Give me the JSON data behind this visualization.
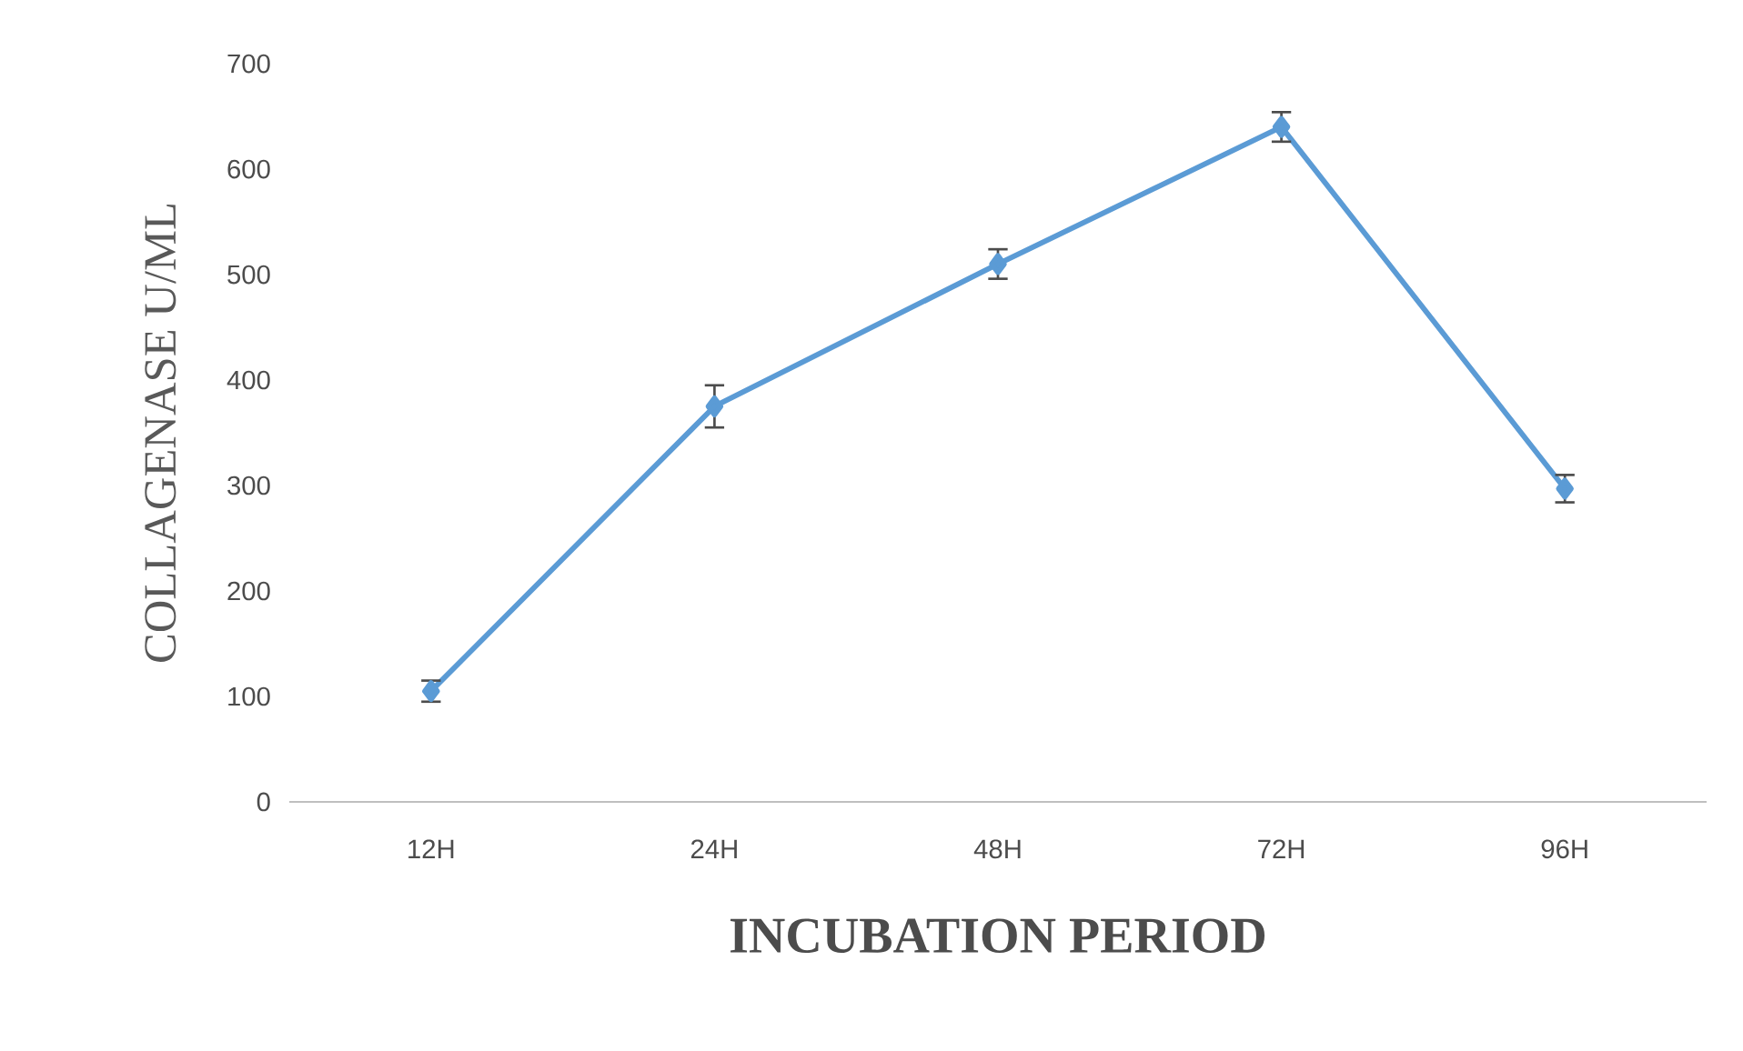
{
  "chart_data": {
    "type": "line",
    "xlabel": "INCUBATION PERIOD",
    "ylabel": "COLLAGENASE U/ML",
    "categories": [
      "12H",
      "24H",
      "48H",
      "72H",
      "96H"
    ],
    "series": [
      {
        "color": "#5b9bd5",
        "values": [
          105,
          375,
          510,
          640,
          297
        ],
        "errors": [
          10,
          20,
          14,
          14,
          13
        ]
      }
    ],
    "ylim": [
      0,
      700
    ],
    "yticks": [
      0,
      100,
      200,
      300,
      400,
      500,
      600,
      700
    ],
    "marker": "diamond",
    "line_style": "solid",
    "grid": false
  }
}
